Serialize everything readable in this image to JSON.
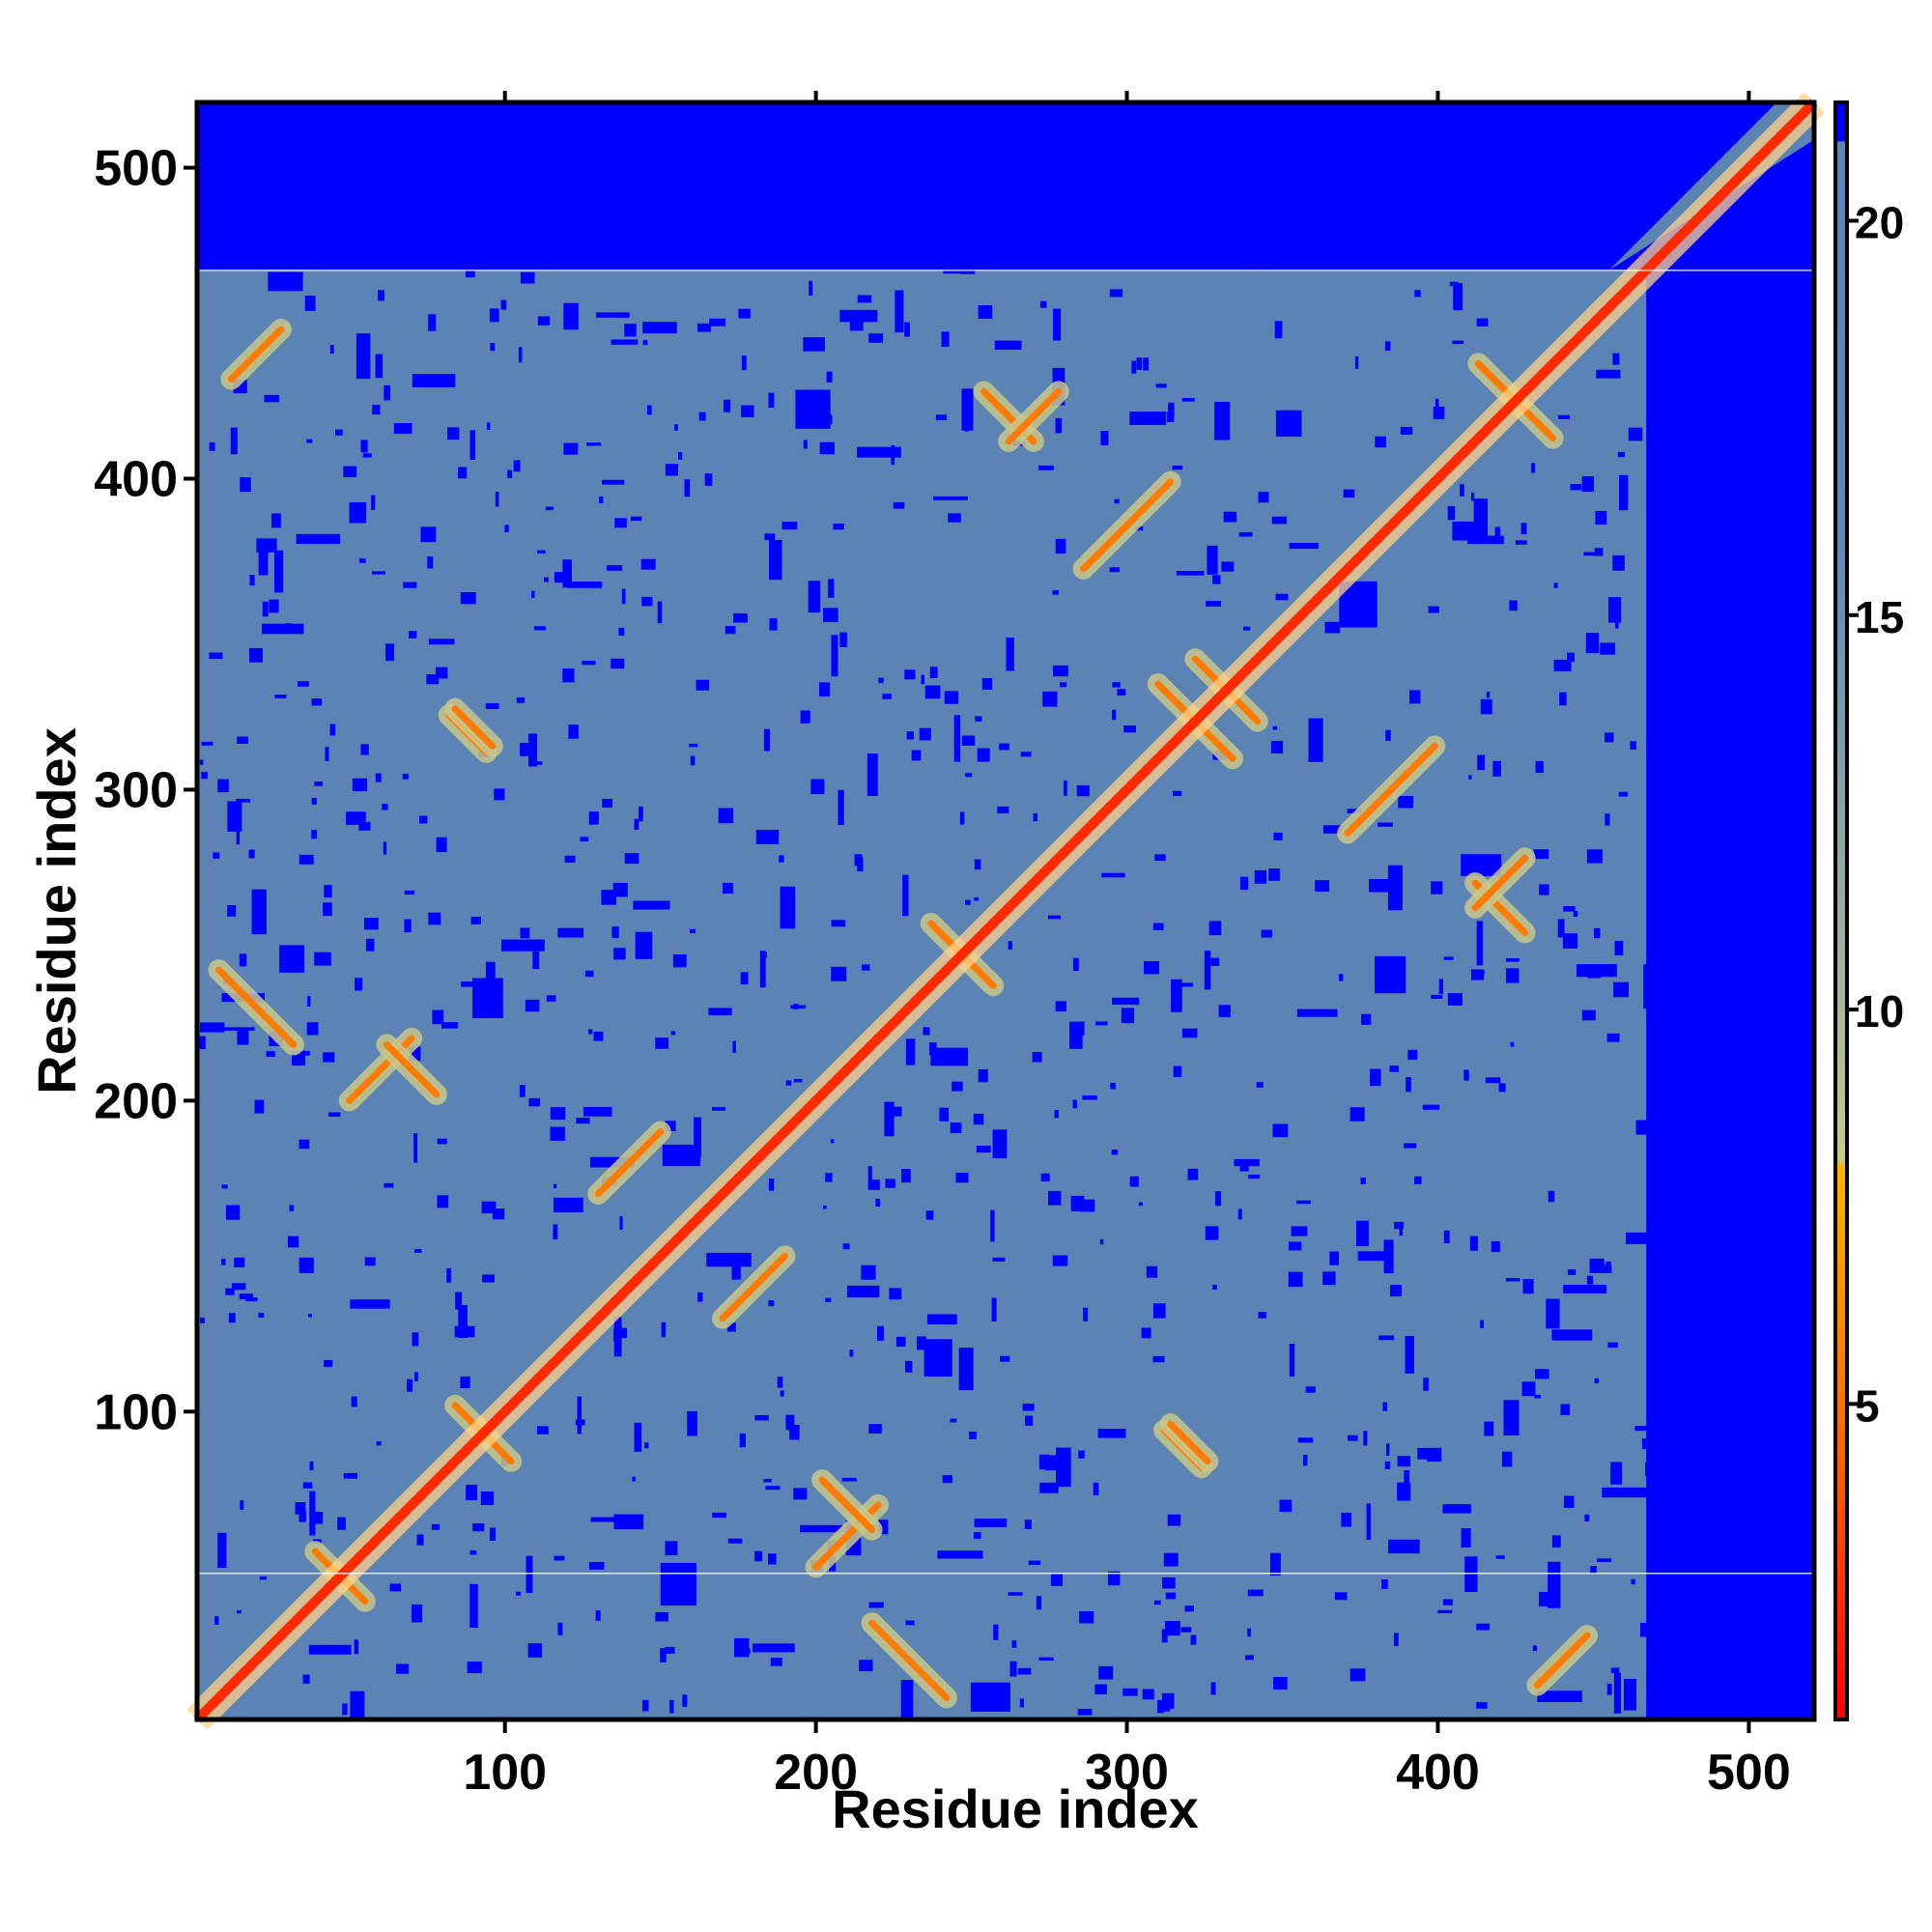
{
  "chart_data": {
    "type": "heatmap",
    "title": "",
    "xlabel": "Residue index",
    "ylabel": "Residue index",
    "xlim": [
      1,
      521
    ],
    "ylim": [
      1,
      521
    ],
    "x_ticks": [
      100,
      200,
      300,
      400,
      500
    ],
    "y_ticks": [
      100,
      200,
      300,
      400,
      500
    ],
    "x_tick_labels": [
      "100",
      "200",
      "300",
      "400",
      "500"
    ],
    "y_tick_labels": [
      "100",
      "200",
      "300",
      "400",
      "500"
    ],
    "grid": false,
    "colorbar": {
      "position": "right",
      "range": [
        1,
        21.5
      ],
      "ticks": [
        5,
        10,
        15,
        20
      ],
      "tick_labels": [
        "5",
        "10",
        "15",
        "20"
      ],
      "colors": [
        {
          "value": 1,
          "color": "#ff0000"
        },
        {
          "value": 4,
          "color": "#ff5a00"
        },
        {
          "value": 8,
          "color": "#ffb400"
        },
        {
          "value": 8.1,
          "color": "#c8c88a"
        },
        {
          "value": 11,
          "color": "#9ab0a0"
        },
        {
          "value": 16,
          "color": "#6088b8"
        },
        {
          "value": 21,
          "color": "#5b84b5"
        },
        {
          "value": 21.01,
          "color": "#0000ff"
        }
      ]
    },
    "background_value_color": "#0000ff",
    "mid_value_color": "#5b84b5",
    "structured_region": [
      1,
      467
    ],
    "separator_lines_y": [
      48,
      467
    ],
    "diagonal_value": 1,
    "contact_features": [
      {
        "type": "anti",
        "center": [
          47,
          47
        ],
        "half_length": 8
      },
      {
        "type": "anti",
        "center": [
          93,
          93
        ],
        "half_length": 9
      },
      {
        "type": "anti",
        "center": [
          247,
          247
        ],
        "half_length": 10
      },
      {
        "type": "anti",
        "center": [
          322,
          322
        ],
        "half_length": 12
      },
      {
        "type": "anti",
        "center": [
          332,
          332
        ],
        "half_length": 10
      },
      {
        "type": "anti",
        "center": [
          425,
          425
        ],
        "half_length": 12
      },
      {
        "type": "anti",
        "center": [
          88,
          318
        ],
        "half_length": 6
      },
      {
        "type": "anti",
        "center": [
          318,
          88
        ],
        "half_length": 6
      },
      {
        "type": "anti",
        "center": [
          420,
          262
        ],
        "half_length": 8
      },
      {
        "type": "anti",
        "center": [
          262,
          420
        ],
        "half_length": 8
      },
      {
        "type": "par",
        "center": [
          60,
          210
        ],
        "half_length": 10
      },
      {
        "type": "par",
        "center": [
          210,
          60
        ],
        "half_length": 10
      },
      {
        "type": "par",
        "center": [
          300,
          385
        ],
        "half_length": 14
      },
      {
        "type": "par",
        "center": [
          385,
          300
        ],
        "half_length": 14
      },
      {
        "type": "par",
        "center": [
          180,
          140
        ],
        "half_length": 10
      },
      {
        "type": "par",
        "center": [
          140,
          180
        ],
        "half_length": 10
      },
      {
        "type": "par",
        "center": [
          20,
          440
        ],
        "half_length": 8
      },
      {
        "type": "par",
        "center": [
          440,
          20
        ],
        "half_length": 8
      },
      {
        "type": "par",
        "center": [
          270,
          420
        ],
        "half_length": 8
      },
      {
        "type": "par",
        "center": [
          420,
          270
        ],
        "half_length": 8
      },
      {
        "type": "anti",
        "center": [
          20,
          230
        ],
        "half_length": 12
      },
      {
        "type": "anti",
        "center": [
          230,
          20
        ],
        "half_length": 12
      },
      {
        "type": "anti",
        "center": [
          210,
          70
        ],
        "half_length": 8
      },
      {
        "type": "anti",
        "center": [
          70,
          210
        ],
        "half_length": 8
      },
      {
        "type": "anti",
        "center": [
          320,
          90
        ],
        "half_length": 6
      },
      {
        "type": "anti",
        "center": [
          90,
          320
        ],
        "half_length": 6
      }
    ]
  }
}
